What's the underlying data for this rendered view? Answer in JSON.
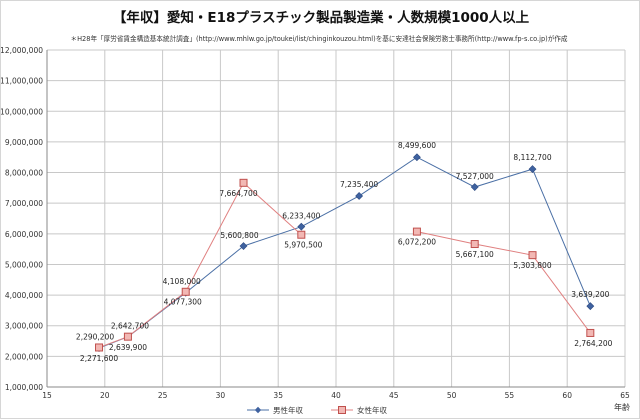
{
  "chart_data": {
    "type": "line",
    "title": "【年収】愛知・E18プラスチック製品製造業・人数規模1000人以上",
    "subtitle": "＊H28年「厚労省賃金構造基本統計調査」(http://www.mhlw.go.jp/toukei/list/chinginkouzou.html)を基に安達社会保険労務士事務所(http://www.fp-s.co.jp)が作成",
    "xlabel": "年齢",
    "ylabel": "",
    "xlim": [
      15,
      65
    ],
    "ylim": [
      1000000,
      12000000
    ],
    "x_ticks": [
      "15",
      "20",
      "25",
      "30",
      "35",
      "40",
      "45",
      "50",
      "55",
      "60",
      "65"
    ],
    "y_ticks": [
      "1,000,000",
      "2,000,000",
      "3,000,000",
      "4,000,000",
      "5,000,000",
      "6,000,000",
      "7,000,000",
      "8,000,000",
      "9,000,000",
      "10,000,000",
      "11,000,000",
      "12,000,000"
    ],
    "grid": true,
    "legend_position": "bottom",
    "series": [
      {
        "name": "男性年収",
        "color": "#4a6fa5",
        "marker": "diamond",
        "points": [
          {
            "x": 19.5,
            "y": 2271600,
            "label": "2,271,600"
          },
          {
            "x": 22,
            "y": 2639900,
            "label": "2,639,900"
          },
          {
            "x": 27,
            "y": 4077300,
            "label": "4,077,300"
          },
          {
            "x": 32,
            "y": 5600800,
            "label": "5,600,800"
          },
          {
            "x": 37,
            "y": 6233400,
            "label": "6,233,400"
          },
          {
            "x": 42,
            "y": 7235400,
            "label": "7,235,400"
          },
          {
            "x": 47,
            "y": 8499600,
            "label": "8,499,600"
          },
          {
            "x": 52,
            "y": 7527000,
            "label": "7,527,000"
          },
          {
            "x": 57,
            "y": 8112700,
            "label": "8,112,700"
          },
          {
            "x": 62,
            "y": 3639200,
            "label": "3,639,200"
          }
        ]
      },
      {
        "name": "女性年収",
        "color": "#e08080",
        "marker": "square",
        "points": [
          {
            "x": 19.5,
            "y": 2290200,
            "label": "2,290,200"
          },
          {
            "x": 22,
            "y": 2642700,
            "label": "2,642,700"
          },
          {
            "x": 27,
            "y": 4108000,
            "label": "4,108,000"
          },
          {
            "x": 32,
            "y": 7664700,
            "label": "7,664,700"
          },
          {
            "x": 37,
            "y": 5970500,
            "label": "5,970,500"
          },
          {
            "x": 47,
            "y": 6072200,
            "label": "6,072,200"
          },
          {
            "x": 52,
            "y": 5667100,
            "label": "5,667,100"
          },
          {
            "x": 57,
            "y": 5303800,
            "label": "5,303,800"
          },
          {
            "x": 62,
            "y": 2764200,
            "label": "2,764,200"
          }
        ]
      }
    ]
  }
}
